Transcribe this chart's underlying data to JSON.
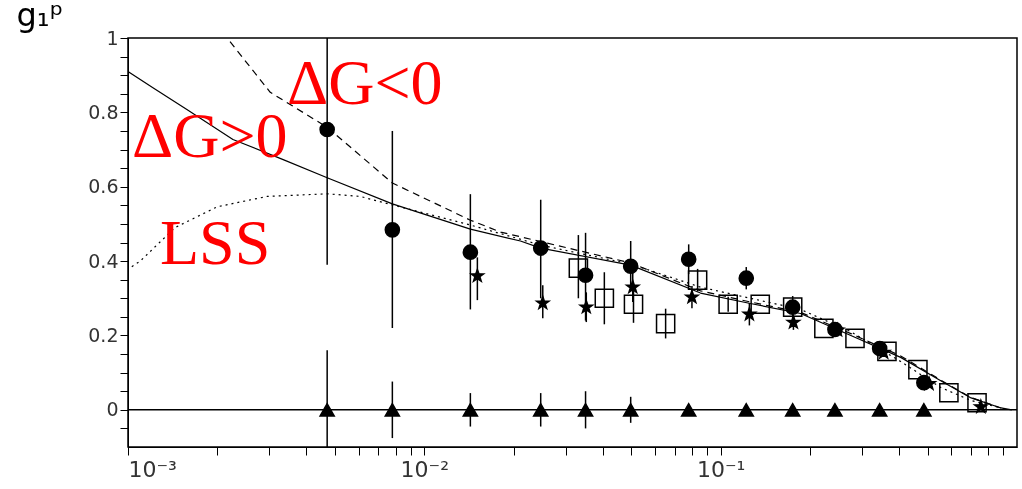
{
  "chart_data": {
    "type": "scatter",
    "ylabel": "g₁ᵖ",
    "xlim": [
      0.001,
      1
    ],
    "ylim": [
      -0.1,
      1
    ],
    "log": "x",
    "grid": false,
    "xticks": [
      {
        "value": 0.001,
        "label": "10⁻³"
      },
      {
        "value": 0.002,
        "label": null
      },
      {
        "value": 0.003,
        "label": null
      },
      {
        "value": 0.004,
        "label": null
      },
      {
        "value": 0.005,
        "label": null
      },
      {
        "value": 0.006,
        "label": null
      },
      {
        "value": 0.007,
        "label": null
      },
      {
        "value": 0.008,
        "label": null
      },
      {
        "value": 0.009,
        "label": null
      },
      {
        "value": 0.01,
        "label": "10⁻²"
      },
      {
        "value": 0.02,
        "label": null
      },
      {
        "value": 0.03,
        "label": null
      },
      {
        "value": 0.04,
        "label": null
      },
      {
        "value": 0.05,
        "label": null
      },
      {
        "value": 0.06,
        "label": null
      },
      {
        "value": 0.07,
        "label": null
      },
      {
        "value": 0.08,
        "label": null
      },
      {
        "value": 0.09,
        "label": null
      },
      {
        "value": 0.1,
        "label": "10⁻¹"
      },
      {
        "value": 0.2,
        "label": null
      },
      {
        "value": 0.3,
        "label": null
      },
      {
        "value": 0.4,
        "label": null
      },
      {
        "value": 0.5,
        "label": null
      },
      {
        "value": 0.6,
        "label": null
      },
      {
        "value": 0.7,
        "label": null
      },
      {
        "value": 0.8,
        "label": null
      },
      {
        "value": 0.9,
        "label": null
      }
    ],
    "yticks": [
      {
        "value": -0.05,
        "label": null
      },
      0,
      {
        "value": 0.05,
        "label": null
      },
      {
        "value": 0.1,
        "label": null
      },
      {
        "value": 0.15,
        "label": null
      },
      0.2,
      {
        "value": 0.25,
        "label": null
      },
      {
        "value": 0.3,
        "label": null
      },
      {
        "value": 0.35,
        "label": null
      },
      0.4,
      {
        "value": 0.45,
        "label": null
      },
      {
        "value": 0.5,
        "label": null
      },
      {
        "value": 0.55,
        "label": null
      },
      0.6,
      {
        "value": 0.65,
        "label": null
      },
      {
        "value": 0.7,
        "label": null
      },
      {
        "value": 0.75,
        "label": null
      },
      0.8,
      {
        "value": 0.85,
        "label": null
      },
      {
        "value": 0.9,
        "label": null
      },
      {
        "value": 0.95,
        "label": null
      },
      1
    ],
    "ref_lines": [
      {
        "axis": "y",
        "value": 0,
        "color": "#000000",
        "line_style": "solid"
      }
    ],
    "annotations": [
      "ΔG<0",
      "ΔG>0",
      "LSS"
    ],
    "series": [
      {
        "type": "line",
        "color": "#000000",
        "line_style": "solid",
        "x": [
          0.001,
          0.00121,
          0.00158,
          0.00226,
          0.00334,
          0.0047,
          0.0078,
          0.0143,
          0.0211,
          0.0247,
          0.0497,
          0.0855,
          0.126,
          0.186,
          0.275,
          0.405,
          0.553,
          0.7,
          0.883,
          0.96
        ],
        "values": [
          0.91,
          0.867,
          0.808,
          0.727,
          0.673,
          0.624,
          0.554,
          0.486,
          0.454,
          0.435,
          0.389,
          0.314,
          0.286,
          0.259,
          0.2,
          0.141,
          0.078,
          0.032,
          0.005,
          0
        ]
      },
      {
        "type": "line",
        "color": "#000000",
        "line_style": "dashed",
        "x": [
          0.00221,
          0.00302,
          0.0047,
          0.0078,
          0.0143,
          0.0181,
          0.0497,
          0.0855,
          0.126,
          0.186,
          0.275,
          0.405,
          0.553,
          0.7,
          0.883
        ],
        "values": [
          0.99,
          0.854,
          0.76,
          0.61,
          0.51,
          0.478,
          0.395,
          0.32,
          0.29,
          0.262,
          0.205,
          0.145,
          0.08,
          0.033,
          0.005
        ]
      },
      {
        "type": "line",
        "color": "#000000",
        "line_style": "dotted",
        "x": [
          0.00103,
          0.0011,
          0.00144,
          0.002,
          0.00295,
          0.0047,
          0.00607,
          0.0078,
          0.0143,
          0.0247,
          0.0497,
          0.0855,
          0.126,
          0.186,
          0.275,
          0.405,
          0.553,
          0.7,
          0.883
        ],
        "values": [
          0.385,
          0.4,
          0.49,
          0.546,
          0.574,
          0.581,
          0.574,
          0.551,
          0.497,
          0.443,
          0.392,
          0.33,
          0.3,
          0.27,
          0.21,
          0.13,
          0.06,
          0.025,
          0.005
        ]
      },
      {
        "marker": "circle",
        "color": "#000000",
        "x": [
          0.0047,
          0.0078,
          0.0143,
          0.0247,
          0.035,
          0.0497,
          0.078,
          0.122,
          0.175,
          0.243,
          0.344,
          0.485
        ],
        "values": [
          0.754,
          0.484,
          0.424,
          0.435,
          0.362,
          0.386,
          0.405,
          0.354,
          0.276,
          0.216,
          0.165,
          0.073
        ],
        "errors": [
          [
            0.39,
            1.0
          ],
          [
            0.22,
            0.75
          ],
          [
            0.27,
            0.58
          ],
          [
            0.3,
            0.565
          ],
          [
            0.24,
            0.476
          ],
          [
            0.32,
            0.454
          ],
          0.04,
          0.03,
          0.03,
          null,
          null,
          null
        ]
      },
      {
        "marker": "star",
        "color": "#000000",
        "x": [
          0.0151,
          0.0251,
          0.0352,
          0.0505,
          0.08,
          0.125,
          0.176,
          0.248,
          0.355,
          0.505,
          0.755
        ],
        "values": [
          0.36,
          0.287,
          0.276,
          0.33,
          0.303,
          0.257,
          0.235,
          0.214,
          0.154,
          0.07,
          0.008
        ],
        "errors": [
          [
            0.295,
            0.41
          ],
          [
            0.246,
            0.335
          ],
          0.04,
          0.04,
          0.03,
          0.03,
          0.02,
          null,
          null,
          null,
          null
        ]
      },
      {
        "marker": "square",
        "color": "#000000",
        "x": [
          0.0331,
          0.0405,
          0.0508,
          0.0652,
          0.0836,
          0.106,
          0.136,
          0.175,
          0.223,
          0.284,
          0.364,
          0.463,
          0.589,
          0.733
        ],
        "values": [
          0.381,
          0.3,
          0.284,
          0.232,
          0.349,
          0.284,
          0.284,
          0.276,
          0.219,
          0.192,
          0.157,
          0.108,
          0.046,
          0.019
        ],
        "errors": [
          [
            0.3,
            0.47
          ],
          [
            0.23,
            0.37
          ],
          0.05,
          0.04,
          0.03,
          0.02,
          null,
          null,
          null,
          null,
          null,
          null,
          null,
          null
        ]
      },
      {
        "marker": "triangle",
        "color": "#000000",
        "x": [
          0.0047,
          0.0078,
          0.0143,
          0.0247,
          0.035,
          0.0497,
          0.078,
          0.122,
          0.175,
          0.243,
          0.344,
          0.485
        ],
        "values": [
          0,
          0,
          0,
          0,
          0,
          0,
          0,
          0,
          0,
          0,
          0,
          0
        ],
        "errors": [
          [
            -0.1,
            0.16
          ],
          0.076,
          0.045,
          0.045,
          0.05,
          0.035,
          null,
          null,
          null,
          null,
          null,
          null
        ]
      }
    ]
  }
}
